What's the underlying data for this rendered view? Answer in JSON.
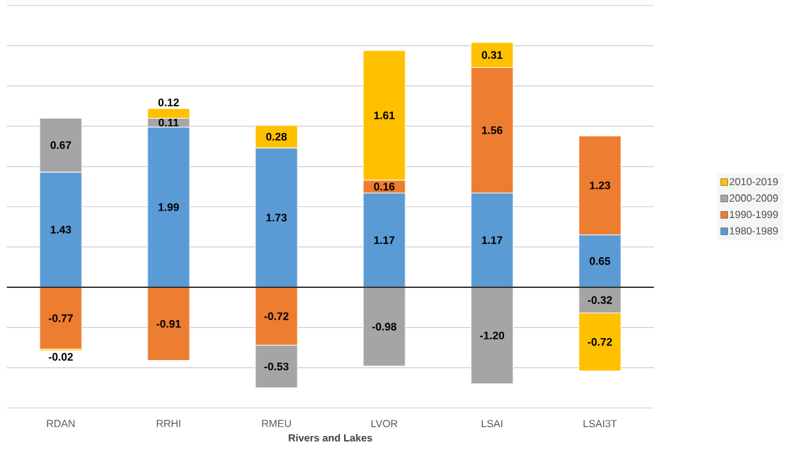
{
  "chart_data": {
    "type": "bar",
    "stacked": true,
    "xlabel": "Rivers and Lakes",
    "categories": [
      "RDAN",
      "RRHI",
      "RMEU",
      "LVOR",
      "LSAI",
      "LSAI3T"
    ],
    "series": [
      {
        "name": "1980-1989",
        "color": "#5b9bd5",
        "values": [
          1.43,
          1.99,
          1.73,
          1.17,
          1.17,
          0.65
        ],
        "value_labels": [
          "1.43",
          "1.99",
          "1.73",
          "1.17",
          "1.17",
          "0.65"
        ]
      },
      {
        "name": "1990-1999",
        "color": "#ed7d31",
        "values": [
          -0.77,
          -0.91,
          -0.72,
          0.16,
          1.56,
          1.23
        ],
        "value_labels": [
          "-0.77",
          "-0.91",
          "-0.72",
          "0.16",
          "1.56",
          "1.23"
        ]
      },
      {
        "name": "2000-2009",
        "color": "#a5a5a5",
        "values": [
          0.67,
          0.11,
          -0.53,
          -0.98,
          -1.2,
          -0.32
        ],
        "value_labels": [
          "0.67",
          "0.11",
          "-0.53",
          "-0.98",
          "-1.20",
          "-0.32"
        ]
      },
      {
        "name": "2010-2019",
        "color": "#ffc000",
        "values": [
          -0.02,
          0.12,
          0.28,
          1.61,
          0.31,
          -0.72
        ],
        "value_labels": [
          "-0.02",
          "0.12",
          "0.28",
          "1.61",
          "0.31",
          "-0.72"
        ]
      }
    ],
    "ylim": [
      -1.5,
      3.5
    ],
    "yticks": [
      {
        "value": -1.5,
        "label": null
      },
      {
        "value": -1,
        "label": null
      },
      {
        "value": -0.5,
        "label": null
      },
      {
        "value": 0,
        "label": null
      },
      {
        "value": 0.5,
        "label": null
      },
      {
        "value": 1,
        "label": null
      },
      {
        "value": 1.5,
        "label": null
      },
      {
        "value": 2,
        "label": null
      },
      {
        "value": 2.5,
        "label": null
      },
      {
        "value": 3,
        "label": null
      },
      {
        "value": 3.5,
        "label": null
      }
    ],
    "grid": "y",
    "legend": "right"
  }
}
